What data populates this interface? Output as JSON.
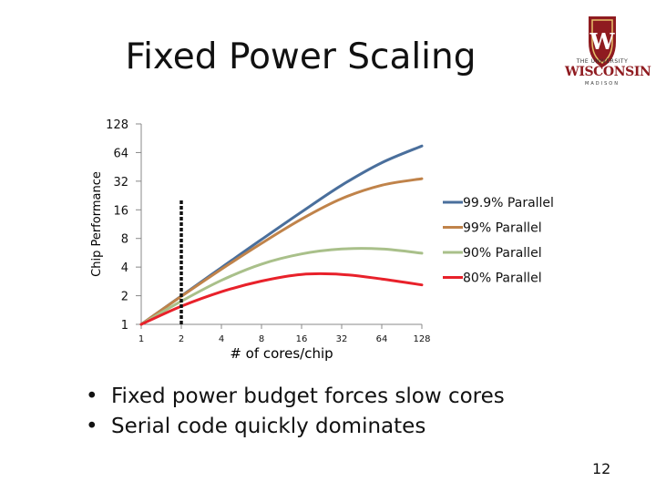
{
  "slide": {
    "title": "Fixed Power Scaling",
    "page_number": "12",
    "bullets": [
      "Fixed power budget forces slow cores",
      "Serial code quickly dominates"
    ],
    "logo": {
      "line1": "THE UNIVERSITY",
      "line2": "WISCONSIN",
      "line3": "MADISON",
      "brand_color": "#8f1b20"
    }
  },
  "chart_data": {
    "type": "line",
    "title": "",
    "xlabel": "# of cores/chip",
    "ylabel": "Chip Performance",
    "x_scale": "log2",
    "y_scale": "log2",
    "x_ticks": [
      1,
      2,
      4,
      8,
      16,
      32,
      64,
      128
    ],
    "y_ticks": [
      1,
      2,
      4,
      8,
      16,
      32,
      64,
      128
    ],
    "xlim": [
      1,
      128
    ],
    "ylim": [
      1,
      128
    ],
    "legend_position": "right",
    "annotation": "dashed vertical line at x = 2",
    "x": [
      1,
      2,
      4,
      8,
      16,
      32,
      64,
      128
    ],
    "series": [
      {
        "name": "99.9% Parallel",
        "color": "#4a6f9c",
        "values": [
          1,
          1.99,
          3.95,
          7.8,
          15.2,
          29,
          50,
          75
        ]
      },
      {
        "name": "99% Parallel",
        "color": "#c0834a",
        "values": [
          1,
          1.97,
          3.8,
          7.1,
          12.8,
          21,
          29,
          34
        ]
      },
      {
        "name": "90% Parallel",
        "color": "#a9c08a",
        "values": [
          1,
          1.75,
          2.9,
          4.3,
          5.5,
          6.2,
          6.2,
          5.6
        ]
      },
      {
        "name": "80% Parallel",
        "color": "#e8212a",
        "values": [
          1,
          1.55,
          2.2,
          2.85,
          3.35,
          3.35,
          3.0,
          2.6
        ]
      }
    ]
  }
}
